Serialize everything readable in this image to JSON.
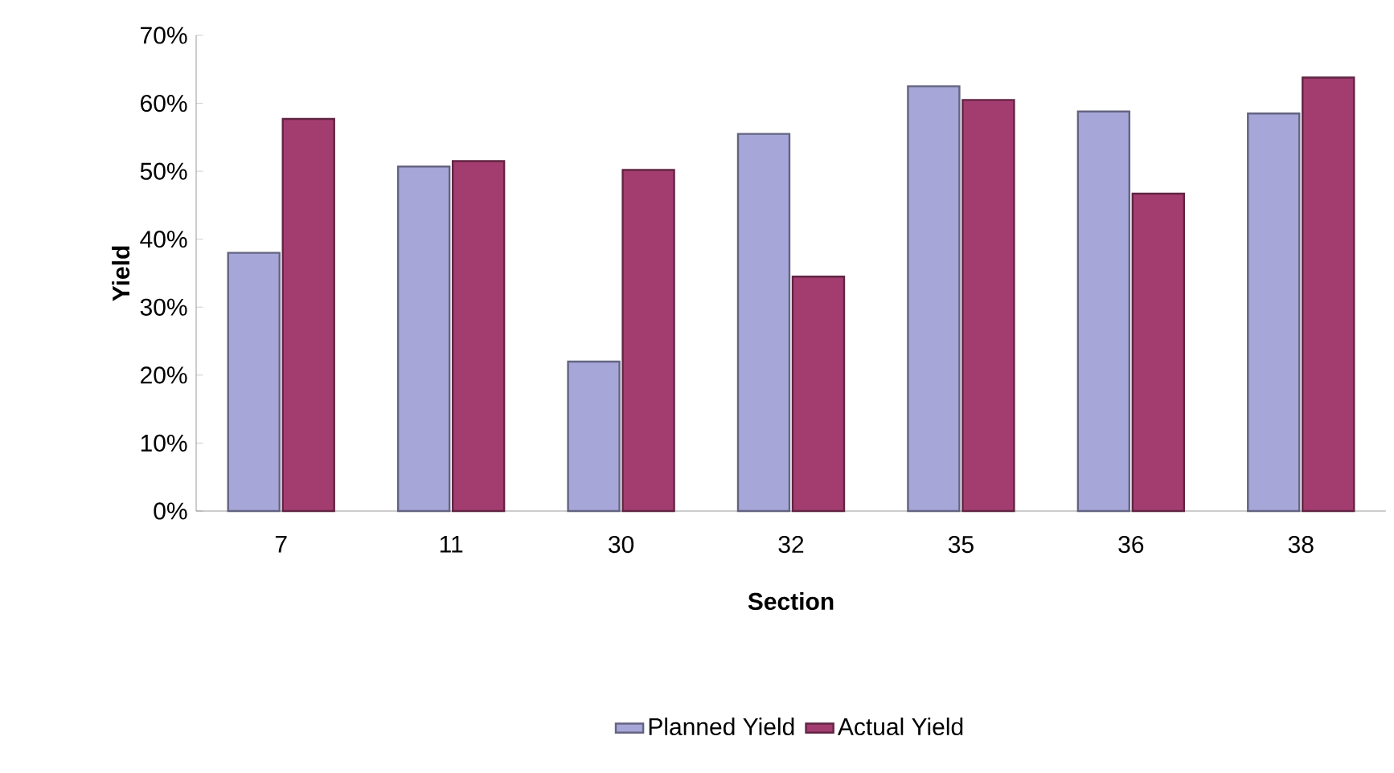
{
  "chart_data": {
    "type": "bar",
    "xlabel": "Section",
    "ylabel": "Yield",
    "categories": [
      "7",
      "11",
      "30",
      "32",
      "35",
      "36",
      "38"
    ],
    "series": [
      {
        "name": "Planned Yield",
        "color": "#a6a6d8",
        "values": [
          38,
          50.7,
          22,
          55.5,
          62.5,
          58.8,
          58.5
        ]
      },
      {
        "name": "Actual Yield",
        "color": "#a33d70",
        "values": [
          57.7,
          51.5,
          50.2,
          34.5,
          60.5,
          46.7,
          63.8
        ]
      }
    ],
    "ylim": [
      0,
      70
    ],
    "yticks": [
      {
        "value": 0,
        "label": "0%"
      },
      {
        "value": 10,
        "label": "10%"
      },
      {
        "value": 20,
        "label": "20%"
      },
      {
        "value": 30,
        "label": "30%"
      },
      {
        "value": 40,
        "label": "40%"
      },
      {
        "value": 50,
        "label": "50%"
      },
      {
        "value": 60,
        "label": "60%"
      },
      {
        "value": 70,
        "label": "70%"
      }
    ],
    "grid": false,
    "legend": "bottom"
  }
}
